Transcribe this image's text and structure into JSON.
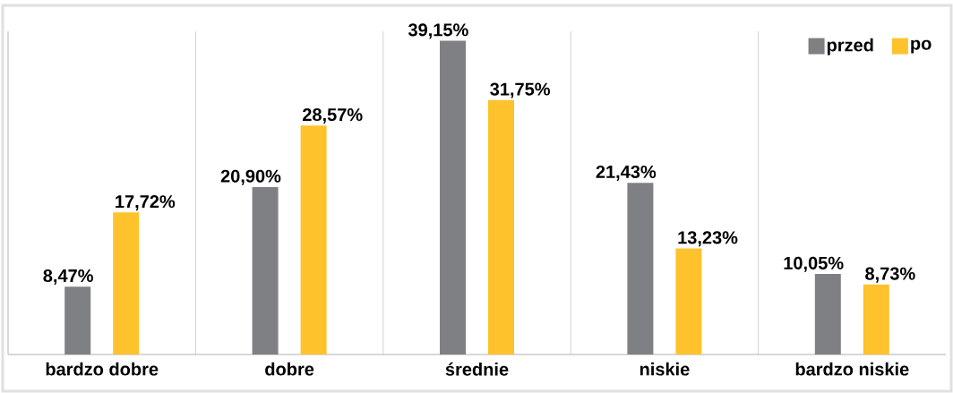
{
  "chart_data": {
    "type": "bar",
    "categories": [
      "bardzo dobre",
      "dobre",
      "średnie",
      "niskie",
      "bardzo niskie"
    ],
    "series": [
      {
        "name": "przed",
        "color": "#7f8083",
        "values": [
          8.47,
          20.9,
          39.15,
          21.43,
          10.05
        ],
        "value_labels": [
          "8,47%",
          "20,90%",
          "39,15%",
          "21,43%",
          "10,05%"
        ]
      },
      {
        "name": "po",
        "color": "#fec22d",
        "values": [
          17.72,
          28.57,
          31.75,
          13.23,
          8.73
        ],
        "value_labels": [
          "17,72%",
          "28,57%",
          "31,75%",
          "13,23%",
          "8,73%"
        ]
      }
    ],
    "grid": "x",
    "legend": "top right"
  }
}
